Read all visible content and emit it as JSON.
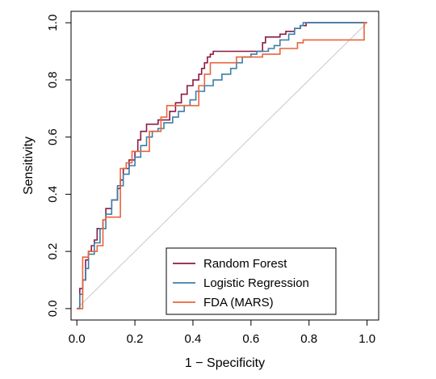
{
  "chart_data": {
    "type": "line",
    "title": "",
    "xlabel": "1 − Specificity",
    "ylabel": "Sensitivity",
    "xlim": [
      -0.02,
      1.04
    ],
    "ylim": [
      -0.04,
      1.04
    ],
    "x_ticks": [
      "0.0",
      "0.2",
      "0.4",
      "0.6",
      "0.8",
      "1.0"
    ],
    "y_ticks": [
      "0.0",
      "0.2",
      "0.4",
      "0.6",
      "0.8",
      "1.0"
    ],
    "grid": false,
    "legend_position": "bottom-right",
    "reference_line": {
      "from": [
        0,
        0
      ],
      "to": [
        1,
        1
      ],
      "color": "#c8c8c8"
    },
    "series": [
      {
        "name": "Random Forest",
        "color": "#8b1a45",
        "x": [
          0,
          0.01,
          0.01,
          0.02,
          0.02,
          0.03,
          0.03,
          0.04,
          0.04,
          0.05,
          0.05,
          0.06,
          0.06,
          0.07,
          0.07,
          0.09,
          0.09,
          0.1,
          0.1,
          0.12,
          0.12,
          0.14,
          0.14,
          0.15,
          0.15,
          0.16,
          0.16,
          0.18,
          0.18,
          0.2,
          0.2,
          0.21,
          0.21,
          0.22,
          0.22,
          0.24,
          0.24,
          0.28,
          0.28,
          0.32,
          0.32,
          0.34,
          0.34,
          0.36,
          0.36,
          0.38,
          0.38,
          0.4,
          0.4,
          0.42,
          0.42,
          0.43,
          0.43,
          0.44,
          0.44,
          0.45,
          0.45,
          0.46,
          0.46,
          0.47,
          0.47,
          0.48,
          0.48,
          0.64,
          0.64,
          0.65,
          0.65,
          0.7,
          0.7,
          0.72,
          0.72,
          0.75,
          0.75,
          0.77,
          0.77,
          0.79,
          0.79,
          1.0
        ],
        "y": [
          0,
          0,
          0.07,
          0.07,
          0.1,
          0.1,
          0.17,
          0.17,
          0.2,
          0.2,
          0.22,
          0.22,
          0.24,
          0.24,
          0.28,
          0.28,
          0.31,
          0.31,
          0.35,
          0.35,
          0.38,
          0.38,
          0.42,
          0.42,
          0.45,
          0.45,
          0.49,
          0.49,
          0.52,
          0.52,
          0.55,
          0.55,
          0.59,
          0.59,
          0.62,
          0.62,
          0.645,
          0.645,
          0.66,
          0.66,
          0.69,
          0.69,
          0.72,
          0.72,
          0.75,
          0.75,
          0.78,
          0.78,
          0.8,
          0.8,
          0.82,
          0.82,
          0.84,
          0.84,
          0.86,
          0.86,
          0.88,
          0.88,
          0.89,
          0.89,
          0.9,
          0.9,
          0.9,
          0.9,
          0.93,
          0.93,
          0.95,
          0.95,
          0.96,
          0.96,
          0.97,
          0.97,
          0.98,
          0.98,
          0.99,
          0.99,
          1.0,
          1.0
        ]
      },
      {
        "name": "Logistic Regression",
        "color": "#3b7ea8",
        "x": [
          0,
          0.01,
          0.01,
          0.02,
          0.02,
          0.03,
          0.03,
          0.04,
          0.04,
          0.06,
          0.06,
          0.08,
          0.08,
          0.1,
          0.1,
          0.12,
          0.12,
          0.14,
          0.14,
          0.16,
          0.16,
          0.18,
          0.18,
          0.2,
          0.2,
          0.22,
          0.22,
          0.24,
          0.24,
          0.26,
          0.26,
          0.28,
          0.28,
          0.3,
          0.3,
          0.33,
          0.33,
          0.35,
          0.35,
          0.37,
          0.37,
          0.39,
          0.39,
          0.41,
          0.41,
          0.44,
          0.44,
          0.47,
          0.47,
          0.5,
          0.5,
          0.53,
          0.53,
          0.55,
          0.55,
          0.57,
          0.57,
          0.6,
          0.6,
          0.62,
          0.62,
          0.66,
          0.66,
          0.68,
          0.68,
          0.7,
          0.7,
          0.73,
          0.73,
          0.75,
          0.75,
          0.77,
          0.77,
          0.78,
          0.78,
          1.0
        ],
        "y": [
          0,
          0,
          0.05,
          0.05,
          0.1,
          0.1,
          0.14,
          0.14,
          0.19,
          0.19,
          0.23,
          0.23,
          0.28,
          0.28,
          0.33,
          0.33,
          0.38,
          0.38,
          0.43,
          0.43,
          0.47,
          0.47,
          0.5,
          0.5,
          0.53,
          0.53,
          0.57,
          0.57,
          0.6,
          0.6,
          0.62,
          0.62,
          0.63,
          0.63,
          0.65,
          0.65,
          0.67,
          0.67,
          0.69,
          0.69,
          0.71,
          0.71,
          0.73,
          0.73,
          0.76,
          0.76,
          0.78,
          0.78,
          0.8,
          0.8,
          0.82,
          0.82,
          0.84,
          0.84,
          0.86,
          0.86,
          0.88,
          0.88,
          0.89,
          0.89,
          0.9,
          0.9,
          0.91,
          0.91,
          0.92,
          0.92,
          0.94,
          0.94,
          0.96,
          0.96,
          0.98,
          0.98,
          0.99,
          0.99,
          1.0,
          1.0
        ]
      },
      {
        "name": "FDA (MARS)",
        "color": "#e8643c",
        "x": [
          0,
          0.02,
          0.02,
          0.04,
          0.04,
          0.07,
          0.07,
          0.09,
          0.09,
          0.1,
          0.1,
          0.15,
          0.15,
          0.17,
          0.17,
          0.19,
          0.19,
          0.25,
          0.25,
          0.29,
          0.29,
          0.31,
          0.31,
          0.42,
          0.42,
          0.44,
          0.44,
          0.46,
          0.46,
          0.55,
          0.55,
          0.64,
          0.64,
          0.7,
          0.7,
          0.76,
          0.76,
          0.78,
          0.78,
          0.99,
          0.99,
          1.0
        ],
        "y": [
          0,
          0,
          0.18,
          0.18,
          0.2,
          0.2,
          0.22,
          0.22,
          0.31,
          0.31,
          0.32,
          0.32,
          0.49,
          0.49,
          0.51,
          0.51,
          0.55,
          0.55,
          0.62,
          0.62,
          0.67,
          0.67,
          0.71,
          0.71,
          0.78,
          0.78,
          0.82,
          0.82,
          0.86,
          0.86,
          0.88,
          0.88,
          0.89,
          0.89,
          0.91,
          0.91,
          0.93,
          0.93,
          0.94,
          0.94,
          1.0,
          1.0
        ]
      }
    ]
  }
}
